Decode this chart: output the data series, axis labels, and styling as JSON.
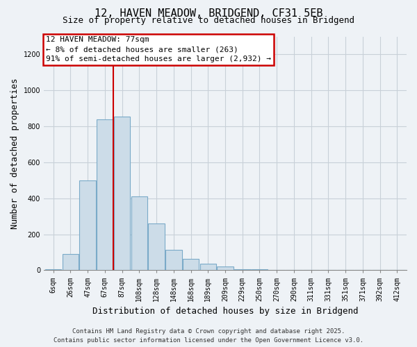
{
  "title": "12, HAVEN MEADOW, BRIDGEND, CF31 5EB",
  "subtitle": "Size of property relative to detached houses in Bridgend",
  "xlabel": "Distribution of detached houses by size in Bridgend",
  "ylabel": "Number of detached properties",
  "bar_labels": [
    "6sqm",
    "26sqm",
    "47sqm",
    "67sqm",
    "87sqm",
    "108sqm",
    "128sqm",
    "148sqm",
    "168sqm",
    "189sqm",
    "209sqm",
    "229sqm",
    "250sqm",
    "270sqm",
    "290sqm",
    "311sqm",
    "331sqm",
    "351sqm",
    "371sqm",
    "392sqm",
    "412sqm"
  ],
  "bar_values": [
    5,
    90,
    500,
    840,
    855,
    410,
    260,
    115,
    65,
    35,
    20,
    5,
    5,
    0,
    0,
    0,
    0,
    0,
    0,
    0,
    0
  ],
  "bar_color": "#ccdce8",
  "bar_edgecolor": "#7aaac8",
  "ylim": [
    0,
    1300
  ],
  "yticks": [
    0,
    200,
    400,
    600,
    800,
    1000,
    1200
  ],
  "vline_x_index": 3.5,
  "vline_color": "#cc0000",
  "annotation_title": "12 HAVEN MEADOW: 77sqm",
  "annotation_line1": "← 8% of detached houses are smaller (263)",
  "annotation_line2": "91% of semi-detached houses are larger (2,932) →",
  "annotation_box_facecolor": "#ffffff",
  "annotation_box_edgecolor": "#cc0000",
  "footer1": "Contains HM Land Registry data © Crown copyright and database right 2025.",
  "footer2": "Contains public sector information licensed under the Open Government Licence v3.0.",
  "fig_facecolor": "#eef2f6",
  "plot_facecolor": "#eef2f6",
  "grid_color": "#c8d0d8",
  "title_fontsize": 11,
  "subtitle_fontsize": 9,
  "ylabel_fontsize": 9,
  "xlabel_fontsize": 9,
  "tick_fontsize": 7,
  "annotation_fontsize": 8,
  "footer_fontsize": 6.5
}
